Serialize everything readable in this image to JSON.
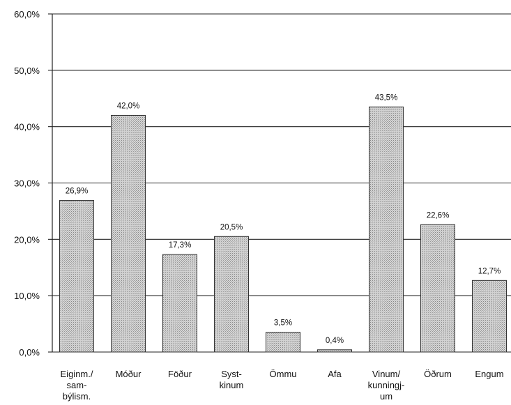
{
  "chart_data": {
    "type": "bar",
    "title": "",
    "xlabel": "",
    "ylabel": "",
    "ylim": [
      0,
      60
    ],
    "yticks": [
      {
        "value": 0,
        "label": "0,0%"
      },
      {
        "value": 10,
        "label": "10,0%"
      },
      {
        "value": 20,
        "label": "20,0%"
      },
      {
        "value": 30,
        "label": "30,0%"
      },
      {
        "value": 40,
        "label": "40,0%"
      },
      {
        "value": 50,
        "label": "50,0%"
      },
      {
        "value": 60,
        "label": "60,0%"
      }
    ],
    "grid": true,
    "legend": "none",
    "categories": [
      [
        "Eiginm./",
        "sam-",
        "býlism."
      ],
      [
        "Móður"
      ],
      [
        "Föður"
      ],
      [
        "Syst-",
        "kinum"
      ],
      [
        "Ömmu"
      ],
      [
        "Afa"
      ],
      [
        "Vinum/",
        "kunningj-",
        "um"
      ],
      [
        "Öðrum"
      ],
      [
        "Engum"
      ]
    ],
    "values": [
      26.9,
      42.0,
      17.3,
      20.5,
      3.5,
      0.4,
      43.5,
      22.6,
      12.7
    ],
    "value_labels": [
      "26,9%",
      "42,0%",
      "17,3%",
      "20,5%",
      "3,5%",
      "0,4%",
      "43,5%",
      "22,6%",
      "12,7%"
    ],
    "bar_color": "#c8c8c8",
    "bar_edge_color": "#333333"
  }
}
